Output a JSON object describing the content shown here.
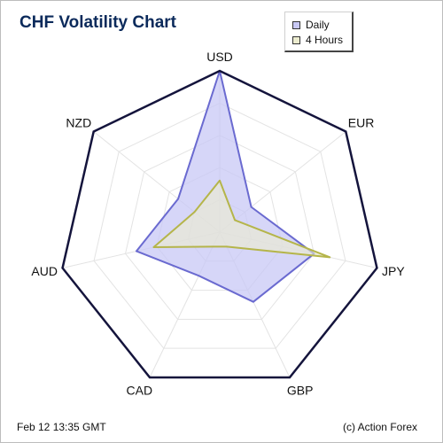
{
  "colors": {
    "title": "#0b2a5b",
    "outer_border": "#14143c",
    "grid": "#e3e3e3",
    "series_daily_line": "#6a6ad0",
    "series_daily_fill": "#c8c8f5",
    "series_4h_line": "#b5b54a",
    "series_4h_fill": "#ececcf"
  },
  "footer": {
    "date": "Feb 12  13:35 GMT",
    "credit": "(c) Action Forex"
  },
  "chart_data": {
    "type": "radar",
    "title": "CHF Volatility Chart",
    "categories": [
      "USD",
      "EUR",
      "JPY",
      "GBP",
      "CAD",
      "AUD",
      "NZD"
    ],
    "max": 100,
    "grid_levels": 5,
    "grid": true,
    "legend_position": "top-right",
    "series": [
      {
        "name": "Daily",
        "values": [
          100,
          25,
          60,
          48,
          30,
          53,
          33
        ]
      },
      {
        "name": "4 Hours",
        "values": [
          32,
          12,
          70,
          10,
          10,
          42,
          20
        ]
      }
    ]
  }
}
